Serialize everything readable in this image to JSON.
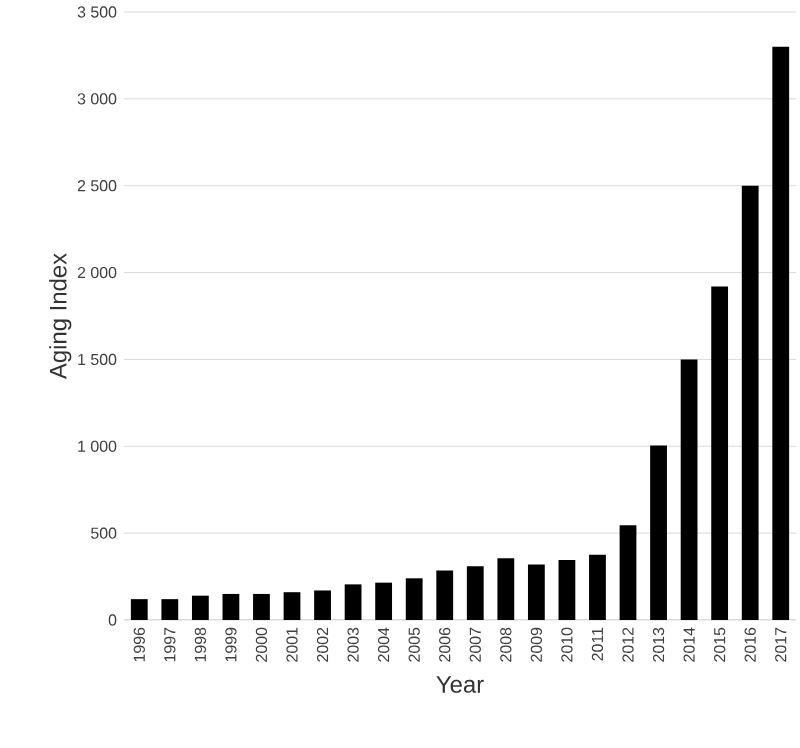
{
  "chart_data": {
    "type": "bar",
    "xlabel": "Year",
    "ylabel": "Aging Index",
    "categories": [
      "1996",
      "1997",
      "1998",
      "1999",
      "2000",
      "2001",
      "2002",
      "2003",
      "2004",
      "2005",
      "2006",
      "2007",
      "2008",
      "2009",
      "2010",
      "2011",
      "2012",
      "2013",
      "2014",
      "2015",
      "2016",
      "2017"
    ],
    "values": [
      120,
      120,
      140,
      150,
      150,
      160,
      170,
      205,
      215,
      240,
      285,
      310,
      355,
      320,
      345,
      375,
      545,
      1005,
      1500,
      1920,
      2500,
      3300
    ],
    "color": "#000000",
    "ylim": [
      0,
      3500
    ],
    "yticks": [
      0,
      500,
      {
        "value": 1000,
        "label": "1 000"
      },
      {
        "value": 1500,
        "label": "1 500"
      },
      {
        "value": 2000,
        "label": "2 000"
      },
      {
        "value": 2500,
        "label": "2 500"
      },
      {
        "value": 3000,
        "label": "3 000"
      },
      {
        "value": 3500,
        "label": "3 500"
      }
    ],
    "grid": "y"
  }
}
